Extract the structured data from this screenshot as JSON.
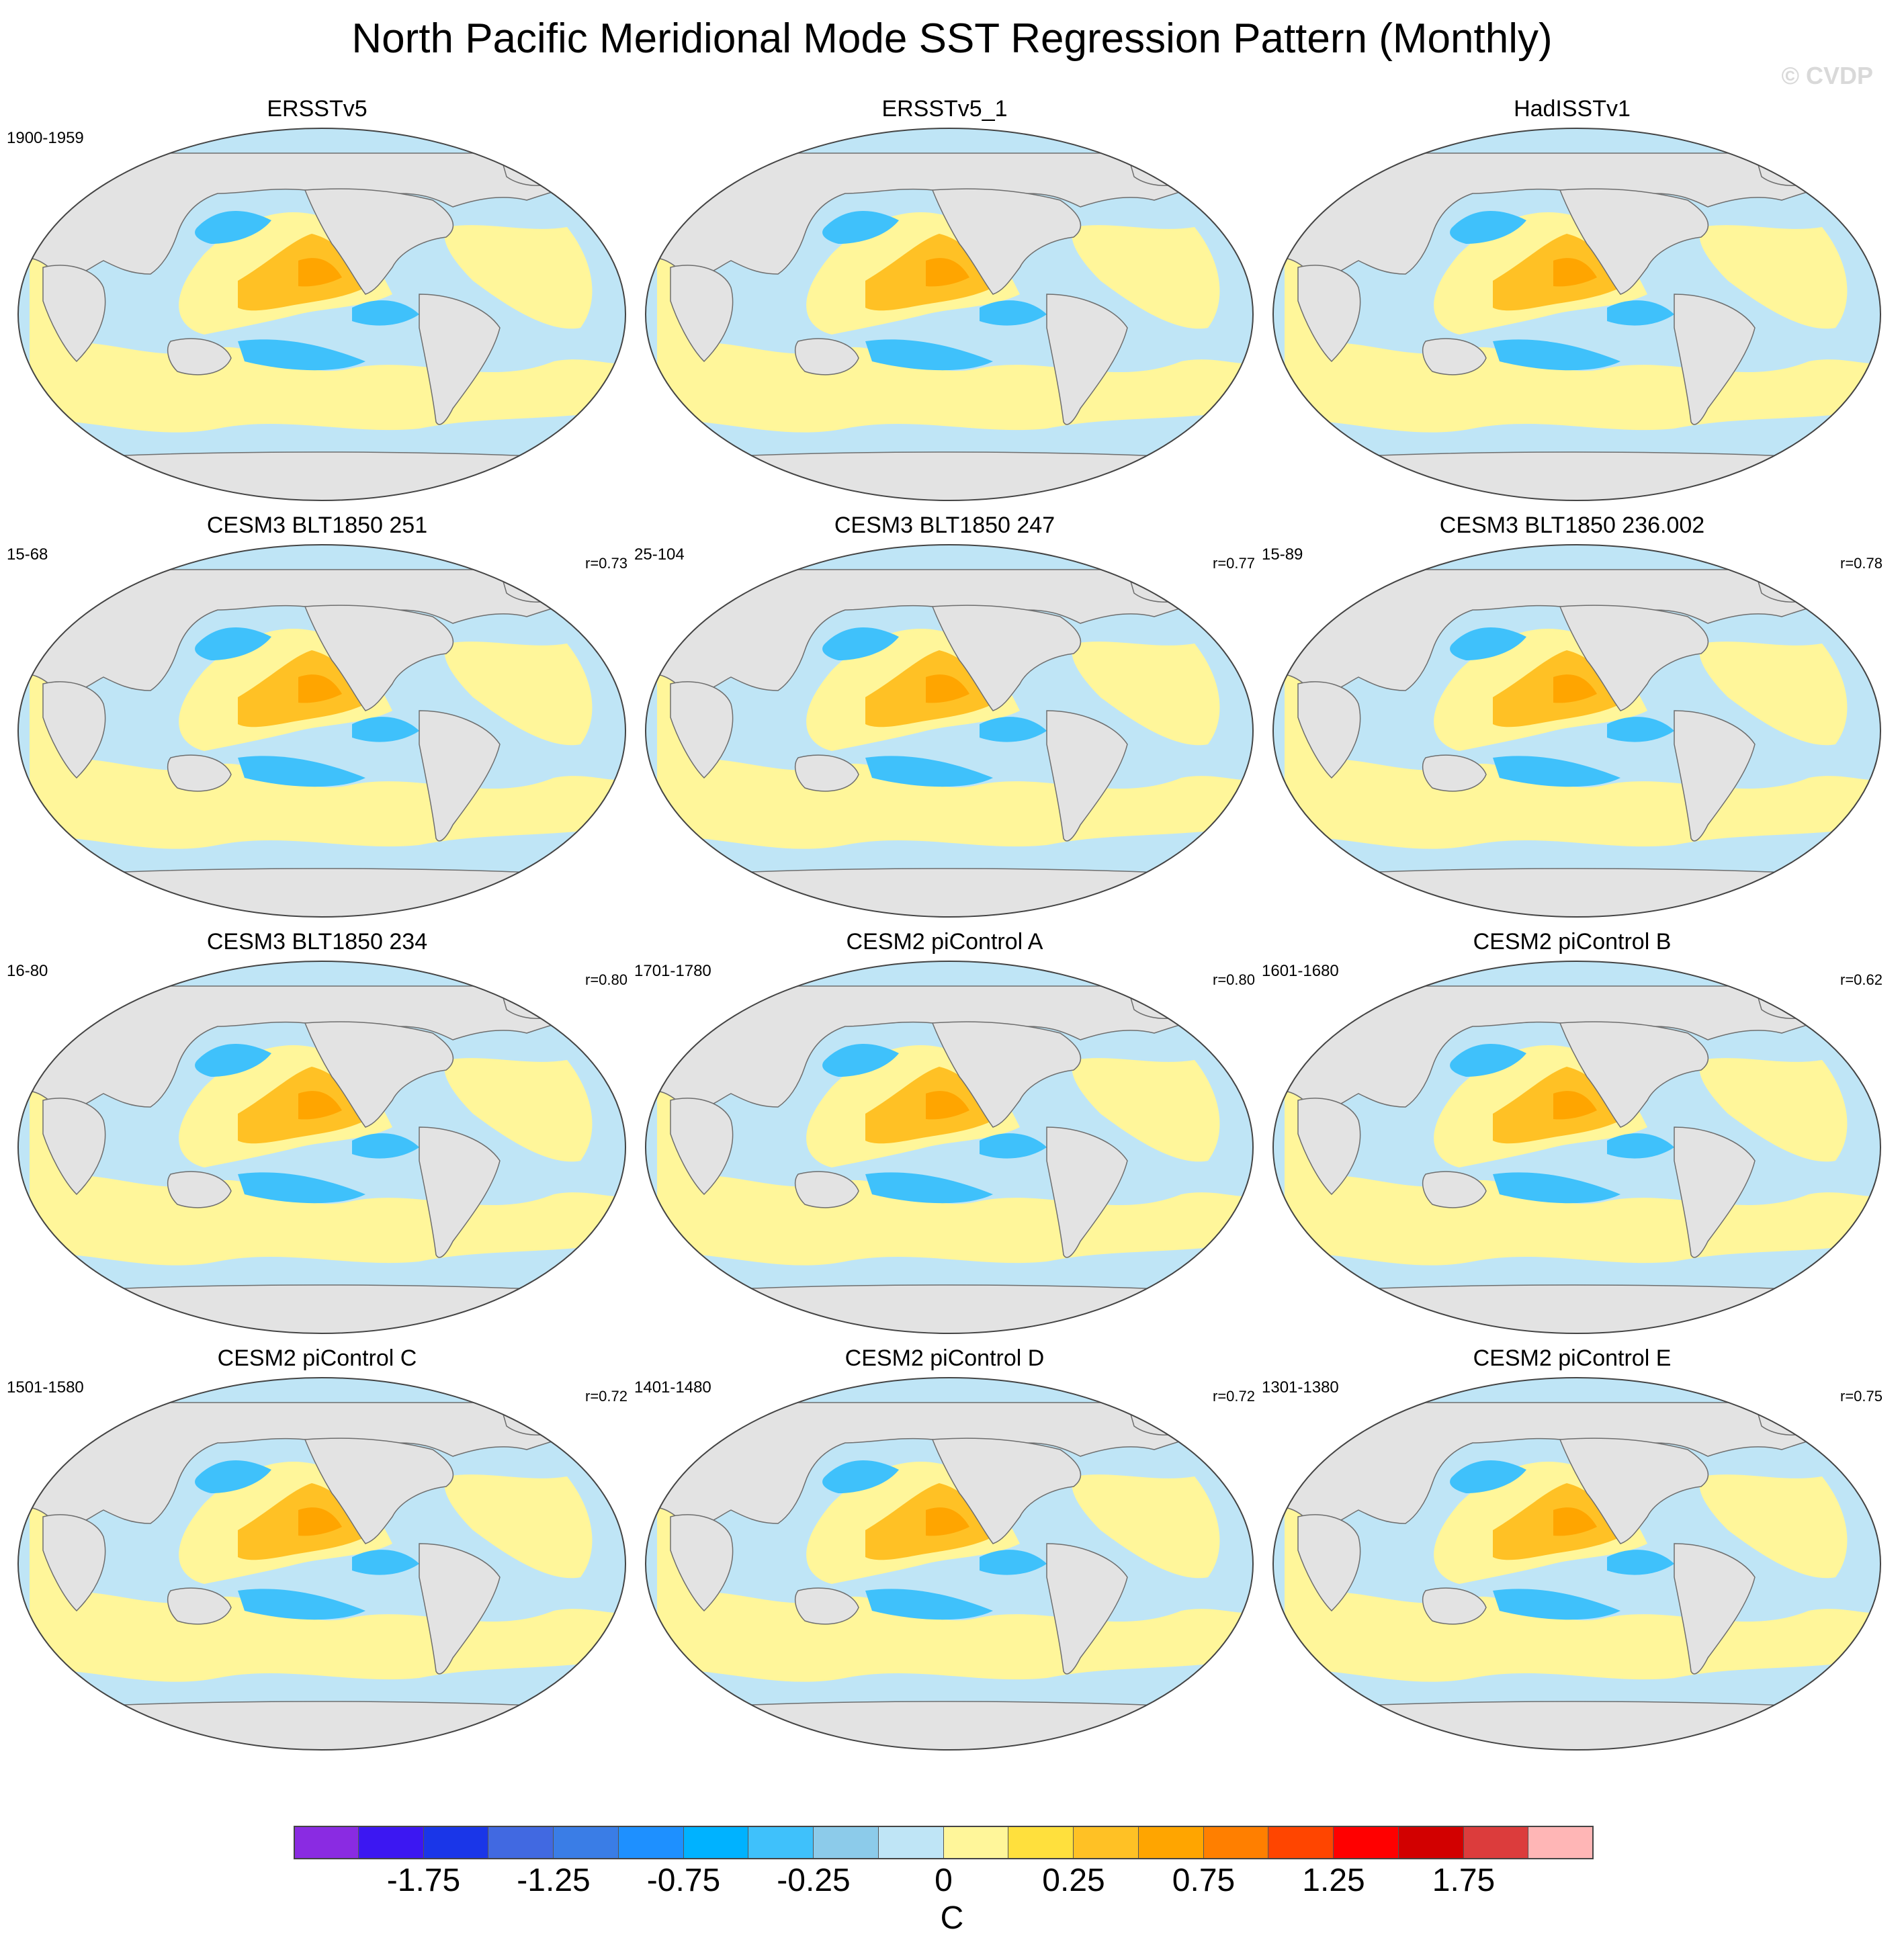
{
  "title": "North Pacific Meridional Mode SST Regression Pattern (Monthly)",
  "copyright": "© CVDP",
  "colors": {
    "land": "#e3e3e3",
    "ocean_neutral": "#bfe5f6",
    "warm": "#fff69a",
    "coast": "#6e6e6e"
  },
  "panels": [
    {
      "title": "ERSSTv5",
      "period": "1900-1959",
      "corr": ""
    },
    {
      "title": "ERSSTv5_1",
      "period": "",
      "corr": ""
    },
    {
      "title": "HadISSTv1",
      "period": "",
      "corr": ""
    },
    {
      "title": "CESM3 BLT1850 251",
      "period": "15-68",
      "corr": "r=0.73"
    },
    {
      "title": "CESM3 BLT1850 247",
      "period": "25-104",
      "corr": "r=0.77"
    },
    {
      "title": "CESM3 BLT1850 236.002",
      "period": "15-89",
      "corr": "r=0.78"
    },
    {
      "title": "CESM3 BLT1850 234",
      "period": "16-80",
      "corr": "r=0.80"
    },
    {
      "title": "CESM2 piControl A",
      "period": "1701-1780",
      "corr": "r=0.80"
    },
    {
      "title": "CESM2 piControl B",
      "period": "1601-1680",
      "corr": "r=0.62"
    },
    {
      "title": "CESM2 piControl C",
      "period": "1501-1580",
      "corr": "r=0.72"
    },
    {
      "title": "CESM2 piControl D",
      "period": "1401-1480",
      "corr": "r=0.72"
    },
    {
      "title": "CESM2 piControl E",
      "period": "1301-1380",
      "corr": "r=0.75"
    }
  ],
  "colorbar": {
    "colors": [
      "#8a2be2",
      "#3c17f2",
      "#1a36e8",
      "#4169e1",
      "#3a7de6",
      "#1e90ff",
      "#00b2ff",
      "#3fc1fb",
      "#8ccbea",
      "#bfe5f6",
      "#fff69a",
      "#ffe03d",
      "#ffc125",
      "#ffa500",
      "#ff7f00",
      "#ff4500",
      "#ff0000",
      "#d20000",
      "#dc3c3c",
      "#ffb6b6"
    ],
    "tick_labels": [
      "-1.75",
      "-1.25",
      "-0.75",
      "-0.25",
      "0",
      "0.25",
      "0.75",
      "1.25",
      "1.75"
    ],
    "unit": "C"
  }
}
